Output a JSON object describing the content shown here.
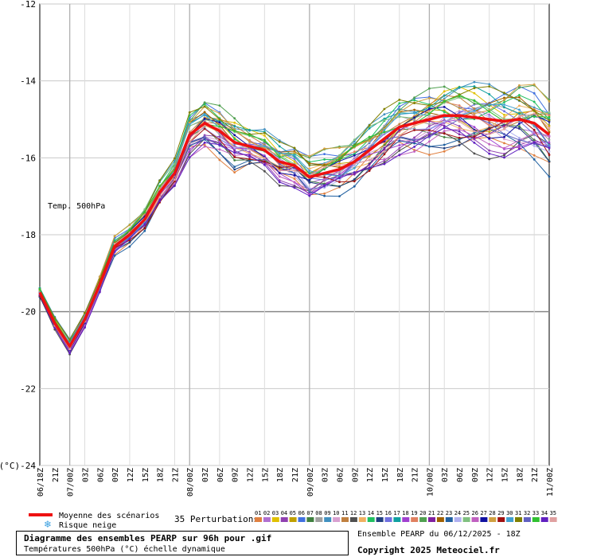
{
  "chart_data": {
    "type": "line",
    "title": "Diagramme des ensembles PEARP sur 96h pour .gif",
    "subtitle": "Températures 500hPa (°C) échelle dynamique",
    "inner_label": "Temp. 500hPa",
    "ylabel": "(°C)",
    "ylim": [
      -24,
      -12
    ],
    "yticks": [
      -24,
      -22,
      -20,
      -18,
      -16,
      -14,
      -12
    ],
    "ytick_labels": [
      "-24",
      "-22",
      "-20",
      "-18",
      "-16",
      "-14",
      "-12"
    ],
    "x_tick_labels": [
      "06/18Z",
      "21Z",
      "07/00Z",
      "03Z",
      "06Z",
      "09Z",
      "12Z",
      "15Z",
      "18Z",
      "21Z",
      "08/00Z",
      "03Z",
      "06Z",
      "09Z",
      "12Z",
      "15Z",
      "18Z",
      "21Z",
      "09/00Z",
      "03Z",
      "06Z",
      "09Z",
      "12Z",
      "15Z",
      "18Z",
      "21Z",
      "10/00Z",
      "03Z",
      "06Z",
      "09Z",
      "12Z",
      "15Z",
      "18Z",
      "21Z",
      "11/00Z"
    ],
    "major_x_ticks": [
      "07/00Z",
      "08/00Z",
      "09/00Z",
      "10/00Z",
      "11/00Z"
    ],
    "mean": {
      "name": "Moyenne des scénarios",
      "color": "#ee1111",
      "values": [
        -19.5,
        -20.3,
        -20.9,
        -20.2,
        -19.3,
        -18.3,
        -18.0,
        -17.6,
        -16.9,
        -16.4,
        -15.4,
        -15.1,
        -15.3,
        -15.6,
        -15.7,
        -15.8,
        -16.1,
        -16.2,
        -16.5,
        -16.4,
        -16.3,
        -16.1,
        -15.8,
        -15.5,
        -15.2,
        -15.1,
        -15.0,
        -14.9,
        -14.9,
        -14.95,
        -15.0,
        -15.05,
        -15.0,
        -15.1,
        -15.4
      ]
    },
    "snow_risk_label": "Risque neige",
    "perturbations_label": "35 Perturbations",
    "perturbation_ids": [
      "01",
      "02",
      "03",
      "04",
      "05",
      "06",
      "07",
      "08",
      "09",
      "10",
      "11",
      "12",
      "13",
      "14",
      "15",
      "16",
      "17",
      "18",
      "19",
      "20",
      "21",
      "22",
      "23",
      "24",
      "25",
      "26",
      "27",
      "28",
      "29",
      "30",
      "31",
      "32",
      "33",
      "34",
      "35"
    ],
    "series_colors": [
      "#e08040",
      "#b070d0",
      "#e0c000",
      "#9040b0",
      "#c0a000",
      "#4070e0",
      "#408040",
      "#a0a0a0",
      "#4090c0",
      "#d8a0d0",
      "#c08040",
      "#505050",
      "#f0b060",
      "#20c060",
      "#204080",
      "#7070e0",
      "#10a0a0",
      "#a040d0",
      "#e08060",
      "#50a050",
      "#8020a0",
      "#a06000",
      "#2060a0",
      "#b0b0f0",
      "#80c080",
      "#c060c0",
      "#1010a0",
      "#d0a040",
      "#a01010",
      "#40a0d0",
      "#808000",
      "#6060c0",
      "#30c030",
      "#6020c0",
      "#e0a0a0"
    ],
    "series_count": 35
  },
  "footer": {
    "run_info": "Ensemble PEARP du 06/12/2025 - 18Z",
    "copyright": "Copyright 2025 Meteociel.fr"
  }
}
